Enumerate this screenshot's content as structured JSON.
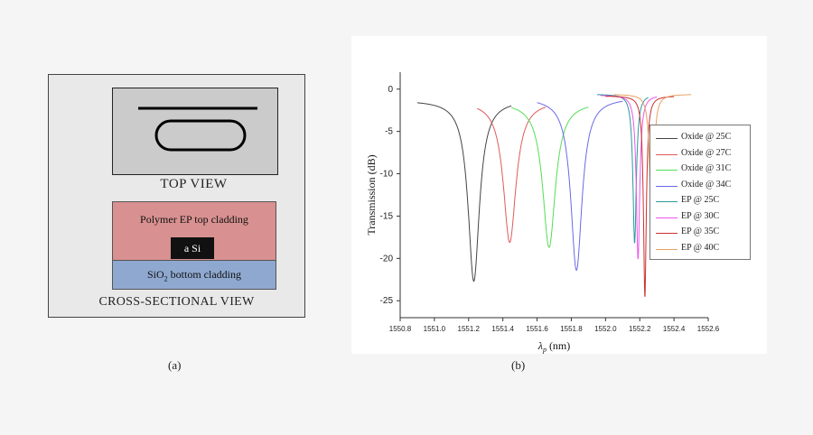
{
  "panel_a": {
    "top_view_label": "TOP VIEW",
    "top_cladding_label": "Polymer EP top cladding",
    "core_label": "a Si",
    "bottom_cladding_main": "SiO",
    "bottom_cladding_sub": "2",
    "bottom_cladding_rest": " bottom cladding",
    "cross_section_label": "CROSS-SECTIONAL VIEW",
    "caption": "(a)"
  },
  "panel_b": {
    "caption": "(b)"
  },
  "chart_data": {
    "type": "line",
    "title": "",
    "xlabel": "λ_p (nm)",
    "xlabel_main": "λ",
    "xlabel_sub": "p",
    "xlabel_unit": "(nm)",
    "ylabel": "Transmission (dB)",
    "xlim": [
      1550.8,
      1552.6
    ],
    "ylim": [
      -27,
      2
    ],
    "xticks": [
      "1550.8",
      "1551.0",
      "1551.2",
      "1551.4",
      "1551.6",
      "1551.8",
      "1552.0",
      "1552.2",
      "1552.4",
      "1552.6"
    ],
    "xtick_values": [
      1550.8,
      1551.0,
      1551.2,
      1551.4,
      1551.6,
      1551.8,
      1552.0,
      1552.2,
      1552.4,
      1552.6
    ],
    "yticks": [
      "0",
      "-5",
      "-10",
      "-15",
      "-20",
      "-25"
    ],
    "ytick_values": [
      0,
      -5,
      -10,
      -15,
      -20,
      -25
    ],
    "legend_position": "right",
    "series": [
      {
        "name": "Oxide @ 25C",
        "color": "#444444",
        "center": 1551.23,
        "min": -22.7,
        "baseline": -1.3,
        "width": 0.04,
        "range": [
          1550.9,
          1551.45
        ]
      },
      {
        "name": "Oxide @ 27C",
        "color": "#e05a5a",
        "center": 1551.44,
        "min": -18.1,
        "baseline": -1.4,
        "width": 0.045,
        "range": [
          1551.25,
          1551.65
        ]
      },
      {
        "name": "Oxide @ 31C",
        "color": "#55dd55",
        "center": 1551.67,
        "min": -18.7,
        "baseline": -1.5,
        "width": 0.045,
        "range": [
          1551.45,
          1551.9
        ]
      },
      {
        "name": "Oxide @ 34C",
        "color": "#6a6ae8",
        "center": 1551.83,
        "min": -21.4,
        "baseline": -1.0,
        "width": 0.04,
        "range": [
          1551.6,
          1552.1
        ]
      },
      {
        "name": "EP @ 25C",
        "color": "#2a9a9a",
        "center": 1552.17,
        "min": -18.2,
        "baseline": -0.6,
        "width": 0.012,
        "range": [
          1551.95,
          1552.25
        ]
      },
      {
        "name": "EP @ 30C",
        "color": "#ee55ee",
        "center": 1552.19,
        "min": -20.1,
        "baseline": -0.7,
        "width": 0.012,
        "range": [
          1551.97,
          1552.3
        ]
      },
      {
        "name": "EP @ 35C",
        "color": "#cc3030",
        "center": 1552.23,
        "min": -24.6,
        "baseline": -0.8,
        "width": 0.01,
        "range": [
          1552.0,
          1552.4
        ]
      },
      {
        "name": "EP @ 40C",
        "color": "#e8a060",
        "center": 1552.27,
        "min": -19.7,
        "baseline": -0.6,
        "width": 0.012,
        "range": [
          1552.05,
          1552.5
        ]
      }
    ]
  }
}
